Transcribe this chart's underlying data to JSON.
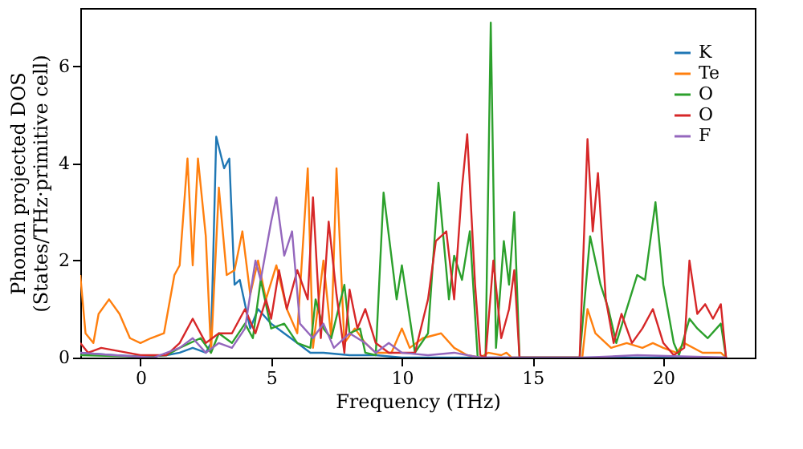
{
  "chart_data": {
    "type": "line",
    "xlabel": "Frequency (THz)",
    "ylabel": "Phonon projected DOS\n(States/THz·primitive cell)",
    "xlim": [
      -2.3,
      23.5
    ],
    "ylim": [
      0,
      7.2
    ],
    "xticks": [
      0,
      5,
      10,
      15,
      20
    ],
    "yticks": [
      0,
      2,
      4,
      6
    ],
    "grid": false,
    "legend": "top right",
    "line_style": "solid",
    "marker": "none",
    "series": [
      {
        "name": "K",
        "color": "#1f77b4",
        "x": [
          -2.3,
          -1,
          0,
          1,
          1.5,
          2,
          2.5,
          2.7,
          2.9,
          3.2,
          3.4,
          3.6,
          3.8,
          4.2,
          4.5,
          5,
          5.5,
          6,
          6.5,
          7,
          8,
          9,
          10,
          12,
          22.4
        ],
        "values": [
          0.1,
          0.05,
          0.02,
          0.05,
          0.1,
          0.2,
          0.1,
          0.3,
          4.55,
          3.9,
          4.1,
          1.5,
          1.6,
          0.6,
          1.0,
          0.7,
          0.5,
          0.3,
          0.1,
          0.1,
          0.05,
          0.05,
          0,
          0,
          0
        ]
      },
      {
        "name": "Te",
        "color": "#ff7f0e",
        "x": [
          -2.3,
          -2.1,
          -1.8,
          -1.6,
          -1.2,
          -0.8,
          -0.4,
          0,
          0.4,
          0.9,
          1.3,
          1.5,
          1.8,
          2.0,
          2.2,
          2.5,
          2.7,
          3.0,
          3.3,
          3.6,
          3.9,
          4.2,
          4.5,
          4.8,
          5.2,
          5.6,
          6.0,
          6.4,
          6.6,
          7.0,
          7.3,
          7.5,
          7.8,
          8.2,
          8.6,
          9.0,
          9.6,
          10.0,
          10.3,
          10.8,
          11.5,
          12.0,
          12.5,
          13.0,
          13.3,
          13.8,
          14.0,
          14.2,
          16.9,
          17.1,
          17.4,
          18.0,
          18.6,
          19.2,
          19.6,
          20.0,
          20.5,
          20.8,
          21.5,
          22.2,
          22.4
        ],
        "values": [
          1.7,
          0.5,
          0.3,
          0.9,
          1.2,
          0.9,
          0.4,
          0.3,
          0.4,
          0.5,
          1.7,
          1.9,
          4.1,
          1.9,
          4.1,
          2.5,
          0.1,
          3.5,
          1.7,
          1.8,
          2.6,
          1.3,
          2.0,
          1.2,
          1.9,
          1.0,
          0.5,
          3.9,
          0.2,
          2.0,
          0.4,
          3.9,
          0.3,
          0.6,
          0.3,
          0.1,
          0.1,
          0.6,
          0.2,
          0.4,
          0.5,
          0.2,
          0.05,
          0,
          0.1,
          0.05,
          0.1,
          0,
          0,
          1.0,
          0.5,
          0.2,
          0.3,
          0.2,
          0.3,
          0.2,
          0.1,
          0.3,
          0.1,
          0.1,
          0
        ]
      },
      {
        "name": "O",
        "color": "#2ca02c",
        "x": [
          -2.3,
          0,
          1,
          1.5,
          2.3,
          2.7,
          3.0,
          3.5,
          4.0,
          4.3,
          4.6,
          5.0,
          5.5,
          6.0,
          6.5,
          6.7,
          7.0,
          7.3,
          7.8,
          8.0,
          8.4,
          8.6,
          9.0,
          9.3,
          9.8,
          10.0,
          10.5,
          11.0,
          11.4,
          11.8,
          12.0,
          12.3,
          12.6,
          12.9,
          13.2,
          13.4,
          13.6,
          13.9,
          14.1,
          14.3,
          14.5,
          16.8,
          17.2,
          17.6,
          17.9,
          18.2,
          18.6,
          19.0,
          19.3,
          19.7,
          20.0,
          20.4,
          20.6,
          21.0,
          21.3,
          21.7,
          22.2,
          22.4
        ],
        "values": [
          0.05,
          0.02,
          0.05,
          0.2,
          0.4,
          0.1,
          0.5,
          0.3,
          0.7,
          0.4,
          1.6,
          0.6,
          0.7,
          0.3,
          0.2,
          1.2,
          0.6,
          0.4,
          1.5,
          0.5,
          0.6,
          0.1,
          0.05,
          3.4,
          1.2,
          1.9,
          0.1,
          0.5,
          3.6,
          1.2,
          2.1,
          1.6,
          2.6,
          0,
          0,
          6.9,
          0.2,
          2.4,
          1.5,
          3.0,
          0,
          0,
          2.5,
          1.5,
          1.0,
          0.3,
          1.0,
          1.7,
          1.6,
          3.2,
          1.5,
          0.3,
          0.05,
          0.8,
          0.6,
          0.4,
          0.7,
          0
        ]
      },
      {
        "name": "O",
        "color": "#d62728",
        "x": [
          -2.3,
          -2,
          -1.5,
          -0.5,
          0,
          1,
          1.5,
          2.0,
          2.5,
          3.0,
          3.5,
          4.0,
          4.4,
          4.8,
          5.0,
          5.3,
          5.6,
          6.0,
          6.4,
          6.6,
          6.9,
          7.2,
          7.5,
          7.8,
          8.0,
          8.3,
          8.6,
          9.0,
          9.5,
          10.5,
          11.0,
          11.3,
          11.7,
          12.0,
          12.3,
          12.5,
          12.8,
          13.0,
          13.2,
          13.5,
          13.8,
          14.1,
          14.3,
          14.5,
          16.8,
          17.1,
          17.3,
          17.5,
          17.8,
          18.1,
          18.4,
          18.8,
          19.2,
          19.6,
          20.0,
          20.4,
          20.8,
          21.0,
          21.3,
          21.6,
          21.9,
          22.2,
          22.4
        ],
        "values": [
          0.3,
          0.1,
          0.2,
          0.1,
          0.05,
          0.05,
          0.3,
          0.8,
          0.3,
          0.5,
          0.5,
          1.0,
          0.5,
          1.2,
          0.8,
          1.8,
          1.0,
          1.8,
          1.2,
          3.3,
          0.4,
          2.8,
          1.3,
          0.1,
          1.4,
          0.6,
          1.0,
          0.3,
          0.1,
          0.1,
          1.2,
          2.4,
          2.6,
          1.2,
          3.5,
          4.6,
          1.5,
          0.05,
          0,
          2.0,
          0.4,
          1.0,
          1.8,
          0,
          0,
          4.5,
          2.6,
          3.8,
          1.2,
          0.3,
          0.9,
          0.3,
          0.6,
          1.0,
          0.3,
          0.05,
          0.2,
          2.0,
          0.9,
          1.1,
          0.8,
          1.1,
          0
        ]
      },
      {
        "name": "F",
        "color": "#9467bd",
        "x": [
          -2.3,
          -1,
          0.5,
          1.5,
          2.0,
          2.5,
          3.0,
          3.5,
          4.0,
          4.4,
          4.6,
          5.0,
          5.2,
          5.5,
          5.8,
          6.1,
          6.6,
          7.0,
          7.4,
          8.0,
          8.6,
          9.0,
          9.5,
          10.0,
          11,
          12,
          13,
          17,
          19,
          22.4
        ],
        "values": [
          0.1,
          0.05,
          0,
          0.2,
          0.4,
          0.1,
          0.3,
          0.2,
          0.6,
          2.0,
          1.6,
          2.8,
          3.3,
          2.1,
          2.6,
          0.7,
          0.4,
          0.7,
          0.2,
          0.5,
          0.3,
          0.1,
          0.3,
          0.1,
          0.05,
          0.1,
          0,
          0,
          0.05,
          0
        ]
      }
    ]
  }
}
